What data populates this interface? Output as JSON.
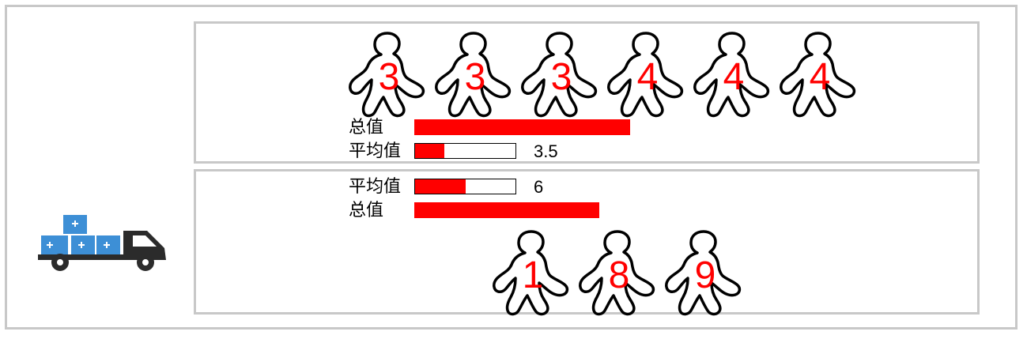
{
  "top_group": {
    "figures": [
      "3",
      "3",
      "3",
      "4",
      "4",
      "4"
    ],
    "total_label": "总值",
    "total_value": 21,
    "avg_label": "平均值",
    "avg_value": "3.5"
  },
  "bottom_group": {
    "figures": [
      "1",
      "8",
      "9"
    ],
    "total_label": "总值",
    "total_value": 18,
    "avg_label": "平均值",
    "avg_value": "6"
  },
  "colors": {
    "accent": "#ff0000",
    "border": "#c8c8c8",
    "truck_blue": "#3d8fd6",
    "truck_dark": "#2b2b2b"
  },
  "icons": {
    "truck": "delivery-truck-icon",
    "person": "walking-person-icon"
  }
}
